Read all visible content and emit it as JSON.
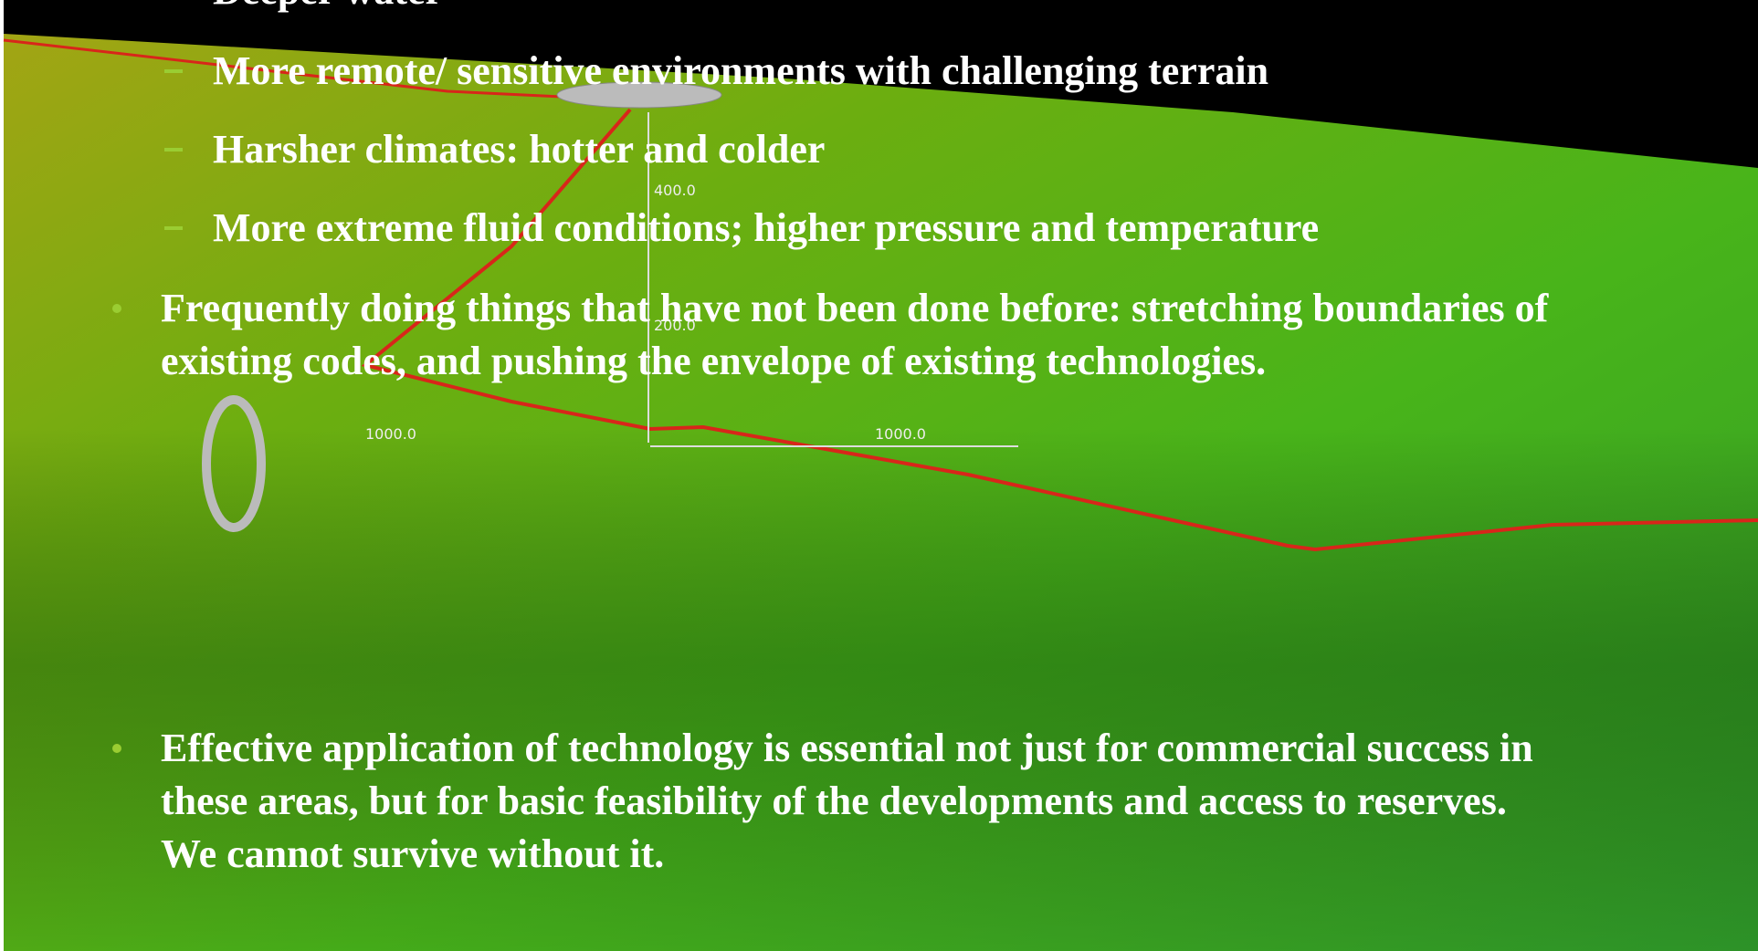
{
  "slide": {
    "sub_items": [
      "Deeper water",
      "More remote/ sensitive environments with challenging terrain",
      "Harsher climates: hotter and colder",
      "More extreme fluid conditions; higher pressure and temperature"
    ],
    "bullets": [
      {
        "lines": [
          "Frequently doing things that have not been done before: stretching boundaries of",
          "existing codes, and pushing the envelope of existing technologies."
        ]
      },
      {
        "lines": [
          "Effective application of  technology is essential not just for commercial success in",
          "these areas, but for basic feasibility of the developments and access to reserves.",
          "We cannot survive without it."
        ]
      }
    ],
    "terrain_labels": [
      "400.0",
      "200.0",
      "1000.0",
      "1000.0"
    ]
  }
}
